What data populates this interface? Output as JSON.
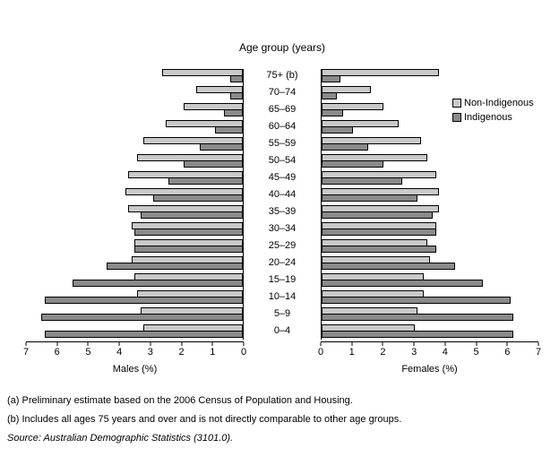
{
  "title": "Age group (years)",
  "legend": {
    "items": [
      {
        "label": "Non-Indigenous",
        "color": "#c9c9c9"
      },
      {
        "label": "Indigenous",
        "color": "#8a8a8a"
      }
    ]
  },
  "footnotes": {
    "a": "(a) Preliminary estimate based on the 2006 Census of Population and Housing.",
    "b": "(b) Includes all ages 75 years and over and is not directly comparable to other age groups.",
    "source": "Source: Australian Demographic Statistics (3101.0)."
  },
  "chart_data": {
    "type": "bar",
    "subtype": "population-pyramid",
    "orientation": "horizontal",
    "title": "Age group (years)",
    "grid": false,
    "legend_position": "right",
    "categories": [
      "75+ (b)",
      "70–74",
      "65–69",
      "60–64",
      "55–59",
      "50–54",
      "45–49",
      "40–44",
      "35–39",
      "30–34",
      "25–29",
      "20–24",
      "15–19",
      "10–14",
      "5–9",
      "0–4"
    ],
    "categories_order": "top-to-bottom",
    "axis": {
      "min": 0,
      "max": 7,
      "ticks": [
        0,
        1,
        2,
        3,
        4,
        5,
        6,
        7
      ],
      "unit": "%"
    },
    "panels": [
      {
        "name": "males",
        "xlabel": "Males (%)",
        "direction": "left",
        "series": [
          {
            "name": "Non-Indigenous",
            "color": "#c9c9c9",
            "values": [
              2.6,
              1.5,
              1.9,
              2.5,
              3.2,
              3.4,
              3.7,
              3.8,
              3.7,
              3.6,
              3.5,
              3.6,
              3.5,
              3.4,
              3.3,
              3.2
            ]
          },
          {
            "name": "Indigenous",
            "color": "#8a8a8a",
            "values": [
              0.4,
              0.4,
              0.6,
              0.9,
              1.4,
              1.9,
              2.4,
              2.9,
              3.3,
              3.5,
              3.5,
              4.4,
              5.5,
              6.4,
              6.5,
              6.4
            ]
          }
        ]
      },
      {
        "name": "females",
        "xlabel": "Females (%)",
        "direction": "right",
        "series": [
          {
            "name": "Non-Indigenous",
            "color": "#c9c9c9",
            "values": [
              3.8,
              1.6,
              2.0,
              2.5,
              3.2,
              3.4,
              3.7,
              3.8,
              3.8,
              3.7,
              3.4,
              3.5,
              3.3,
              3.3,
              3.1,
              3.0
            ]
          },
          {
            "name": "Indigenous",
            "color": "#8a8a8a",
            "values": [
              0.6,
              0.5,
              0.7,
              1.0,
              1.5,
              2.0,
              2.6,
              3.1,
              3.6,
              3.7,
              3.7,
              4.3,
              5.2,
              6.1,
              6.2,
              6.2
            ]
          }
        ]
      }
    ]
  }
}
